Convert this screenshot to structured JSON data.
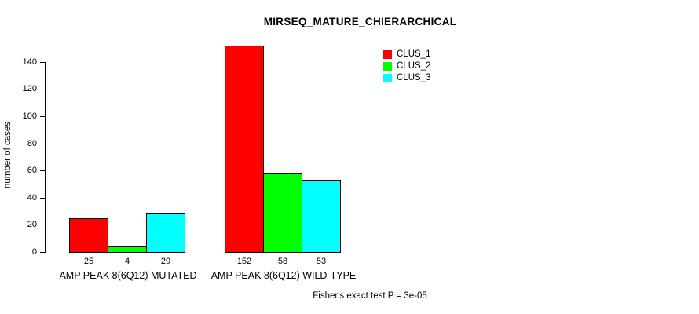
{
  "chart_data": {
    "type": "bar",
    "title": "MIRSEQ_MATURE_CHIERARCHICAL",
    "ylabel": "number of cases",
    "xlabel": "",
    "ylim": [
      0,
      155
    ],
    "yticks": [
      0,
      20,
      40,
      60,
      80,
      100,
      120,
      140
    ],
    "categories": [
      "AMP PEAK 8(6Q12) MUTATED",
      "AMP PEAK 8(6Q12) WILD-TYPE"
    ],
    "series": [
      {
        "name": "CLUS_1",
        "color": "#ff0000",
        "values": [
          25,
          152
        ]
      },
      {
        "name": "CLUS_2",
        "color": "#00ff00",
        "values": [
          4,
          58
        ]
      },
      {
        "name": "CLUS_3",
        "color": "#00ffff",
        "values": [
          29,
          53
        ]
      }
    ],
    "bar_value_labels": [
      [
        "25",
        "4",
        "29"
      ],
      [
        "152",
        "58",
        "53"
      ]
    ],
    "legend_position": "top-right",
    "grid": false,
    "annotation": "Fisher's exact test P = 3e-05"
  }
}
